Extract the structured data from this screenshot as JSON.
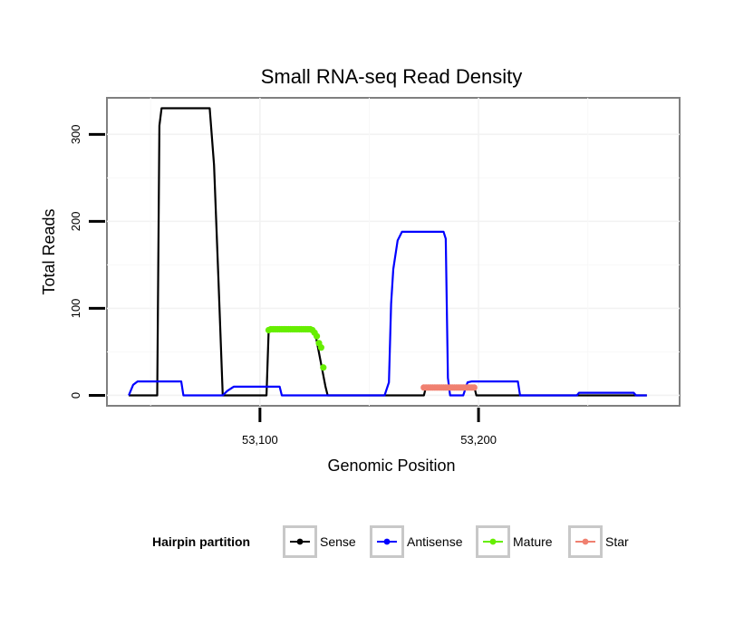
{
  "chart_data": {
    "type": "line",
    "title": "Small RNA-seq Read Density",
    "xlabel": "Genomic Position",
    "ylabel": "Total Reads",
    "xlim": [
      53030,
      53292
    ],
    "ylim": [
      -12,
      342
    ],
    "x_ticks": [
      53100,
      53200
    ],
    "x_tick_labels": [
      "53,100",
      "53,200"
    ],
    "y_ticks": [
      0,
      100,
      200,
      300
    ],
    "y_tick_labels": [
      "0",
      "100",
      "200",
      "300"
    ],
    "grid": true,
    "legend": {
      "title": "Hairpin partition",
      "position": "bottom",
      "entries": [
        "Sense",
        "Antisense",
        "Mature",
        "Star"
      ]
    },
    "series": [
      {
        "name": "Sense",
        "color": "#000000",
        "style": "line",
        "points": [
          [
            53040,
            0
          ],
          [
            53053,
            0
          ],
          [
            53054,
            310
          ],
          [
            53055,
            330
          ],
          [
            53077,
            330
          ],
          [
            53079,
            265
          ],
          [
            53081,
            135
          ],
          [
            53083,
            0
          ],
          [
            53103,
            0
          ],
          [
            53104,
            75
          ],
          [
            53125,
            75
          ],
          [
            53130,
            10
          ],
          [
            53131,
            0
          ],
          [
            53175,
            0
          ],
          [
            53176,
            10
          ],
          [
            53198,
            10
          ],
          [
            53199,
            0
          ],
          [
            53277,
            0
          ]
        ]
      },
      {
        "name": "Antisense",
        "color": "#0000ff",
        "style": "line",
        "points": [
          [
            53040,
            0
          ],
          [
            53042,
            12
          ],
          [
            53044,
            16
          ],
          [
            53064,
            16
          ],
          [
            53065,
            0
          ],
          [
            53083,
            0
          ],
          [
            53085,
            5
          ],
          [
            53088,
            10
          ],
          [
            53109,
            10
          ],
          [
            53110,
            0
          ],
          [
            53157,
            0
          ],
          [
            53159,
            15
          ],
          [
            53160,
            105
          ],
          [
            53161,
            145
          ],
          [
            53163,
            178
          ],
          [
            53165,
            188
          ],
          [
            53184,
            188
          ],
          [
            53185,
            180
          ],
          [
            53186,
            20
          ],
          [
            53187,
            0
          ],
          [
            53193,
            0
          ],
          [
            53195,
            15
          ],
          [
            53197,
            16
          ],
          [
            53218,
            16
          ],
          [
            53219,
            0
          ],
          [
            53245,
            0
          ],
          [
            53246,
            3
          ],
          [
            53271,
            3
          ],
          [
            53272,
            0
          ],
          [
            53277,
            0
          ]
        ]
      },
      {
        "name": "Mature",
        "color": "#66ee00",
        "style": "points",
        "points": [
          [
            53104,
            75
          ],
          [
            53105,
            76
          ],
          [
            53106,
            76
          ],
          [
            53107,
            76
          ],
          [
            53108,
            76
          ],
          [
            53109,
            76
          ],
          [
            53110,
            76
          ],
          [
            53111,
            76
          ],
          [
            53112,
            76
          ],
          [
            53113,
            76
          ],
          [
            53114,
            76
          ],
          [
            53115,
            76
          ],
          [
            53116,
            76
          ],
          [
            53117,
            76
          ],
          [
            53118,
            76
          ],
          [
            53119,
            76
          ],
          [
            53120,
            76
          ],
          [
            53121,
            76
          ],
          [
            53122,
            76
          ],
          [
            53123,
            76
          ],
          [
            53124,
            75
          ],
          [
            53125,
            72
          ],
          [
            53126,
            68
          ],
          [
            53127,
            60
          ],
          [
            53128,
            55
          ],
          [
            53129,
            32
          ]
        ]
      },
      {
        "name": "Star",
        "color": "#f08070",
        "style": "points",
        "points": [
          [
            53175,
            9
          ],
          [
            53176,
            9
          ],
          [
            53177,
            9
          ],
          [
            53178,
            9
          ],
          [
            53179,
            9
          ],
          [
            53180,
            9
          ],
          [
            53181,
            9
          ],
          [
            53182,
            9
          ],
          [
            53183,
            9
          ],
          [
            53184,
            9
          ],
          [
            53185,
            9
          ],
          [
            53186,
            9
          ],
          [
            53187,
            9
          ],
          [
            53188,
            9
          ],
          [
            53189,
            9
          ],
          [
            53190,
            9
          ],
          [
            53191,
            9
          ],
          [
            53192,
            9
          ],
          [
            53193,
            9
          ],
          [
            53194,
            9
          ],
          [
            53195,
            9
          ],
          [
            53196,
            9
          ],
          [
            53197,
            9
          ],
          [
            53198,
            9
          ]
        ]
      }
    ]
  }
}
